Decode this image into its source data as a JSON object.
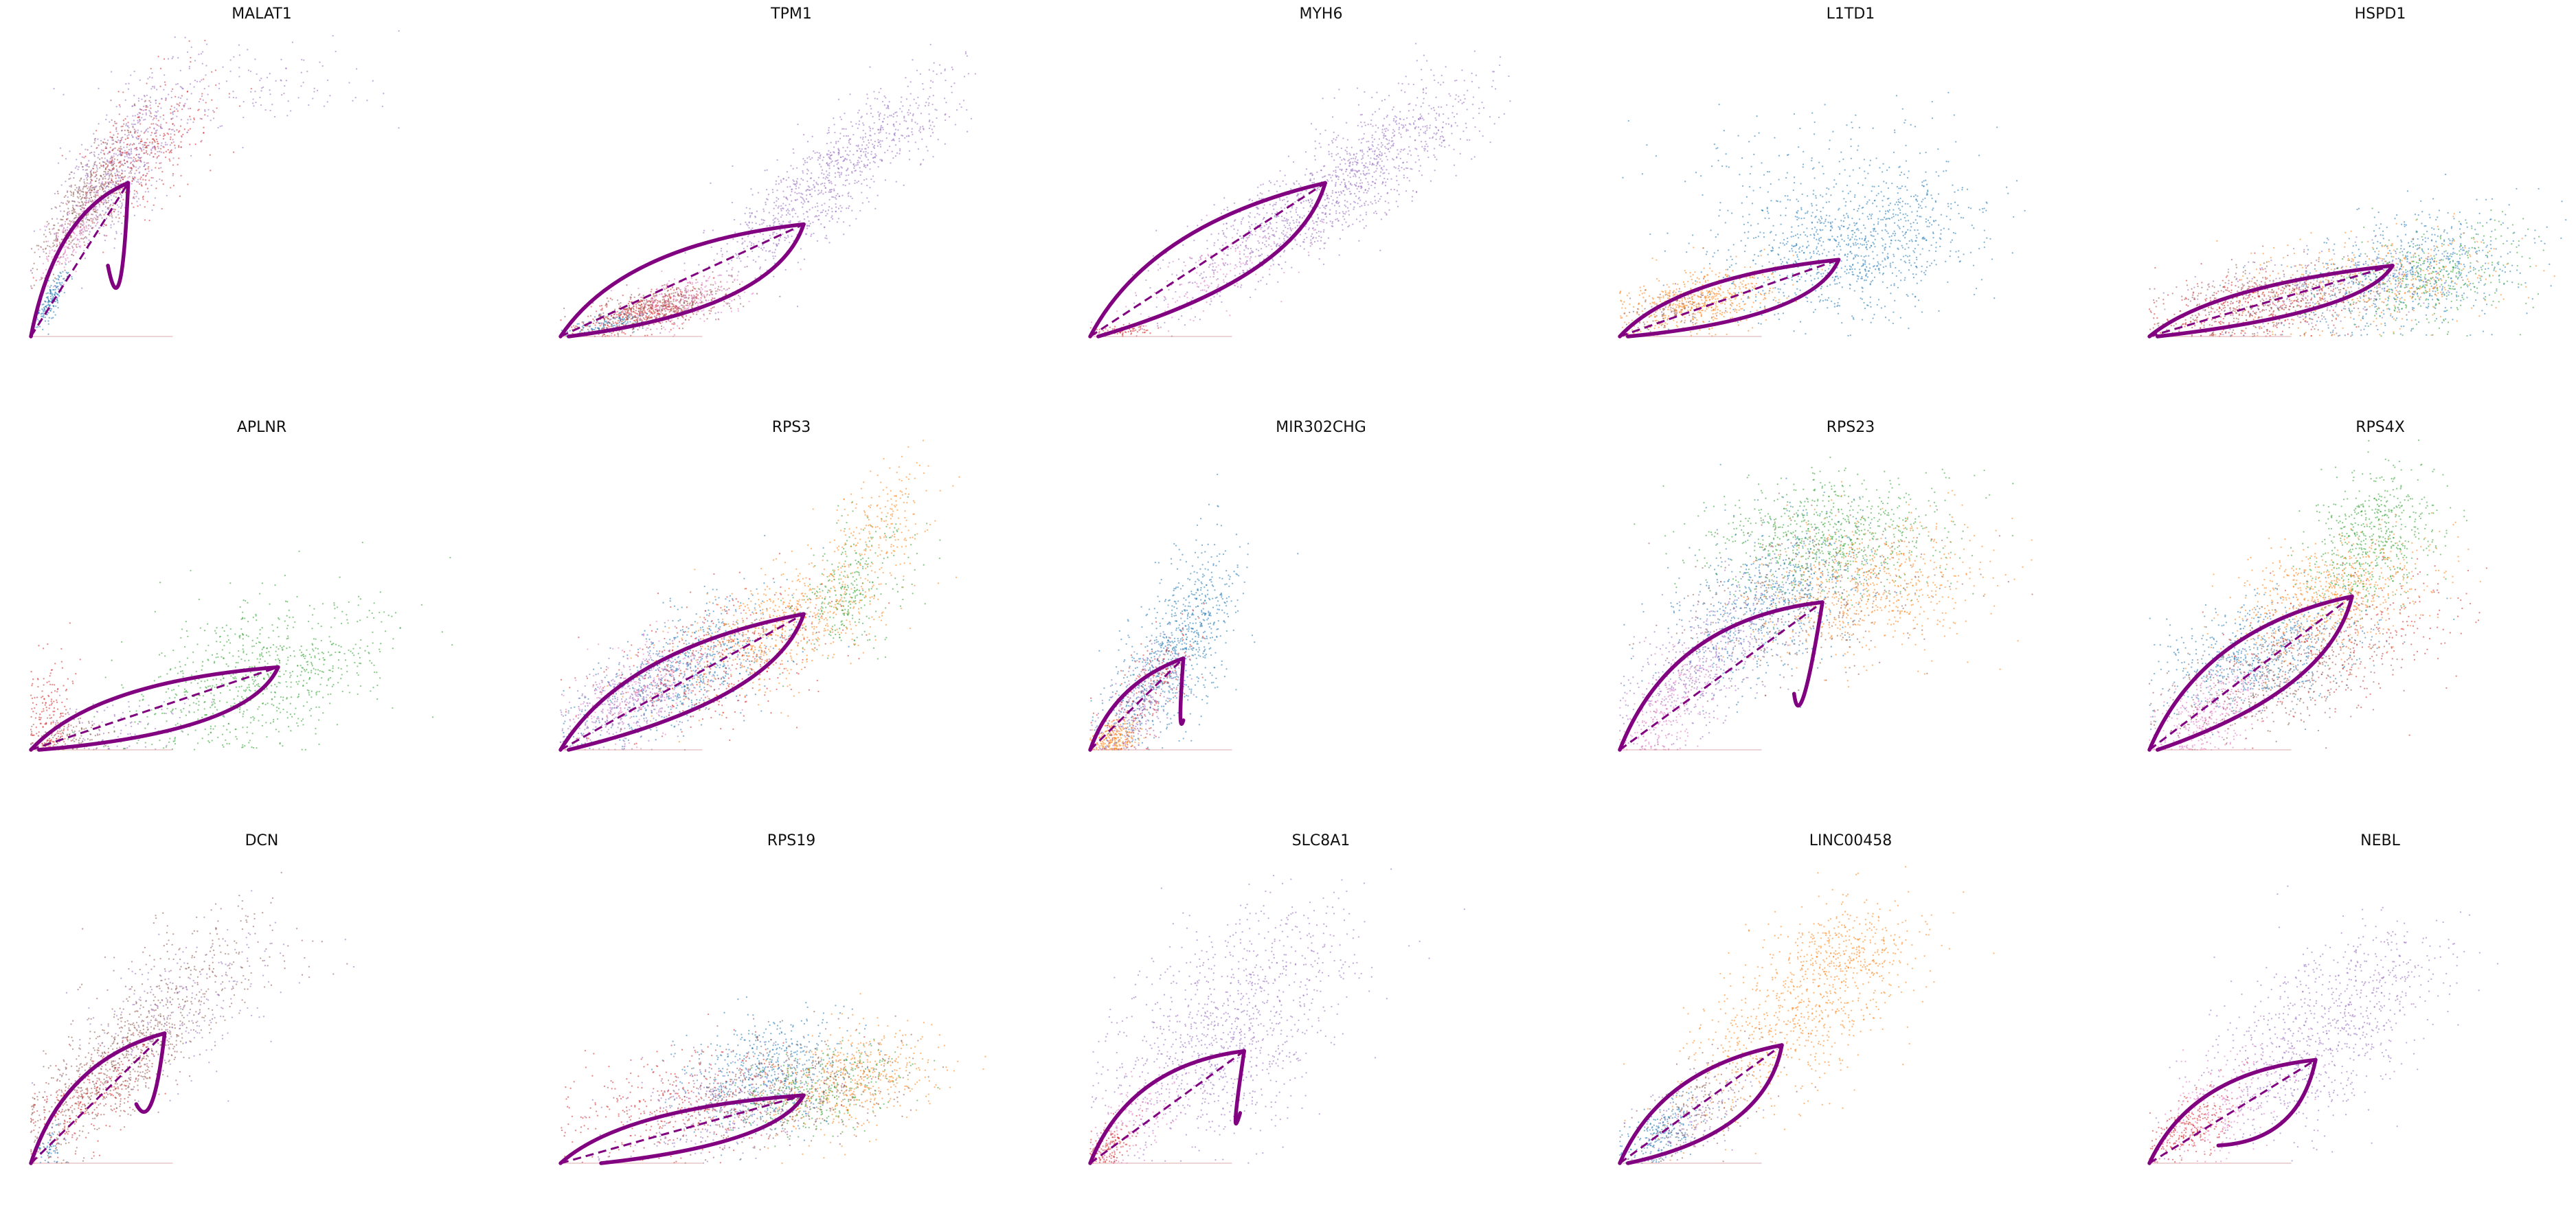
{
  "figure": {
    "palette": {
      "c0": "#1f77b4",
      "c1": "#ff7f0e",
      "c2": "#2ca02c",
      "c3": "#d62728",
      "c4": "#9467bd",
      "c5": "#8c564b",
      "c6": "#e377c2",
      "fit": "#800080"
    }
  },
  "chart_data": [
    {
      "type": "scatter",
      "title": "MALAT1",
      "xlabel": "",
      "ylabel": "",
      "grid": false,
      "axes": "hidden",
      "clusters": [
        {
          "color": "c4",
          "cx": 0.22,
          "cy": 0.58,
          "sx": 0.08,
          "sy": 0.14,
          "corr": 0.7,
          "n": 650
        },
        {
          "color": "c5",
          "cx": 0.14,
          "cy": 0.46,
          "sx": 0.06,
          "sy": 0.12,
          "corr": 0.8,
          "n": 520
        },
        {
          "color": "c3",
          "cx": 0.28,
          "cy": 0.62,
          "sx": 0.08,
          "sy": 0.13,
          "corr": 0.6,
          "n": 350
        },
        {
          "color": "c6",
          "cx": 0.1,
          "cy": 0.34,
          "sx": 0.04,
          "sy": 0.08,
          "corr": 0.8,
          "n": 200
        },
        {
          "color": "c0",
          "cx": 0.05,
          "cy": 0.12,
          "sx": 0.02,
          "sy": 0.05,
          "corr": 0.8,
          "n": 180
        },
        {
          "color": "c4",
          "cx": 0.48,
          "cy": 0.82,
          "sx": 0.18,
          "sy": 0.08,
          "corr": 0.2,
          "n": 150
        }
      ],
      "fit": {
        "on_x": 0.24,
        "on_y": 0.52,
        "off_end_x": 0.19,
        "off_end_y": 0.24,
        "up_bulge": 0.16,
        "down_sag": 0.26,
        "ss_x": 0.24,
        "ss_y": 0.52
      }
    },
    {
      "type": "scatter",
      "title": "TPM1",
      "xlabel": "",
      "ylabel": "",
      "grid": false,
      "axes": "hidden",
      "clusters": [
        {
          "color": "c4",
          "cx": 0.62,
          "cy": 0.48,
          "sx": 0.12,
          "sy": 0.14,
          "corr": 0.8,
          "n": 700
        },
        {
          "color": "c3",
          "cx": 0.2,
          "cy": 0.08,
          "sx": 0.08,
          "sy": 0.04,
          "corr": 0.6,
          "n": 450
        },
        {
          "color": "c5",
          "cx": 0.25,
          "cy": 0.1,
          "sx": 0.09,
          "sy": 0.04,
          "corr": 0.6,
          "n": 400
        },
        {
          "color": "c6",
          "cx": 0.3,
          "cy": 0.12,
          "sx": 0.08,
          "sy": 0.05,
          "corr": 0.5,
          "n": 250
        },
        {
          "color": "c0",
          "cx": 0.12,
          "cy": 0.04,
          "sx": 0.05,
          "sy": 0.02,
          "corr": 0.5,
          "n": 120
        },
        {
          "color": "c4",
          "cx": 0.82,
          "cy": 0.72,
          "sx": 0.1,
          "sy": 0.1,
          "corr": 0.6,
          "n": 250
        }
      ],
      "fit": {
        "on_x": 0.6,
        "on_y": 0.38,
        "off_end_x": 0.02,
        "off_end_y": 0.0,
        "up_bulge": 0.12,
        "down_sag": 0.1,
        "ss_x": 0.6,
        "ss_y": 0.38
      }
    },
    {
      "type": "scatter",
      "title": "MYH6",
      "xlabel": "",
      "ylabel": "",
      "grid": false,
      "axes": "hidden",
      "clusters": [
        {
          "color": "c4",
          "cx": 0.55,
          "cy": 0.45,
          "sx": 0.18,
          "sy": 0.16,
          "corr": 0.85,
          "n": 1100
        },
        {
          "color": "c4",
          "cx": 0.78,
          "cy": 0.72,
          "sx": 0.1,
          "sy": 0.1,
          "corr": 0.5,
          "n": 250
        },
        {
          "color": "c6",
          "cx": 0.3,
          "cy": 0.2,
          "sx": 0.1,
          "sy": 0.08,
          "corr": 0.7,
          "n": 150
        },
        {
          "color": "c3",
          "cx": 0.08,
          "cy": 0.02,
          "sx": 0.04,
          "sy": 0.01,
          "corr": 0.2,
          "n": 80
        }
      ],
      "fit": {
        "on_x": 0.58,
        "on_y": 0.52,
        "off_end_x": 0.02,
        "off_end_y": 0.0,
        "up_bulge": 0.12,
        "down_sag": 0.06,
        "ss_x": 0.58,
        "ss_y": 0.52
      }
    },
    {
      "type": "scatter",
      "title": "L1TD1",
      "xlabel": "",
      "ylabel": "",
      "grid": false,
      "axes": "hidden",
      "clusters": [
        {
          "color": "c0",
          "cx": 0.58,
          "cy": 0.3,
          "sx": 0.16,
          "sy": 0.12,
          "corr": 0.3,
          "n": 1000
        },
        {
          "color": "c1",
          "cx": 0.2,
          "cy": 0.12,
          "sx": 0.1,
          "sy": 0.06,
          "corr": 0.4,
          "n": 600
        },
        {
          "color": "c0",
          "cx": 0.5,
          "cy": 0.55,
          "sx": 0.2,
          "sy": 0.12,
          "corr": 0.2,
          "n": 200
        },
        {
          "color": "c5",
          "cx": 0.12,
          "cy": 0.08,
          "sx": 0.06,
          "sy": 0.04,
          "corr": 0.4,
          "n": 120
        }
      ],
      "fit": {
        "on_x": 0.54,
        "on_y": 0.26,
        "off_end_x": 0.02,
        "off_end_y": 0.0,
        "up_bulge": 0.07,
        "down_sag": 0.07,
        "ss_x": 0.54,
        "ss_y": 0.26
      }
    },
    {
      "type": "scatter",
      "title": "HSPD1",
      "xlabel": "",
      "ylabel": "",
      "grid": false,
      "axes": "hidden",
      "clusters": [
        {
          "color": "c0",
          "cx": 0.65,
          "cy": 0.22,
          "sx": 0.14,
          "sy": 0.1,
          "corr": 0.3,
          "n": 700
        },
        {
          "color": "c2",
          "cx": 0.7,
          "cy": 0.2,
          "sx": 0.12,
          "sy": 0.09,
          "corr": 0.3,
          "n": 350
        },
        {
          "color": "c1",
          "cx": 0.55,
          "cy": 0.18,
          "sx": 0.16,
          "sy": 0.08,
          "corr": 0.3,
          "n": 400
        },
        {
          "color": "c3",
          "cx": 0.25,
          "cy": 0.1,
          "sx": 0.12,
          "sy": 0.06,
          "corr": 0.3,
          "n": 400
        },
        {
          "color": "c5",
          "cx": 0.3,
          "cy": 0.12,
          "sx": 0.14,
          "sy": 0.07,
          "corr": 0.3,
          "n": 400
        },
        {
          "color": "c4",
          "cx": 0.42,
          "cy": 0.16,
          "sx": 0.14,
          "sy": 0.07,
          "corr": 0.3,
          "n": 250
        }
      ],
      "fit": {
        "on_x": 0.6,
        "on_y": 0.24,
        "off_end_x": 0.02,
        "off_end_y": 0.0,
        "up_bulge": 0.05,
        "down_sag": 0.04,
        "ss_x": 0.6,
        "ss_y": 0.24
      }
    },
    {
      "type": "scatter",
      "title": "APLNR",
      "xlabel": "",
      "ylabel": "",
      "grid": false,
      "axes": "hidden",
      "clusters": [
        {
          "color": "c2",
          "cx": 0.56,
          "cy": 0.24,
          "sx": 0.16,
          "sy": 0.13,
          "corr": 0.4,
          "n": 800
        },
        {
          "color": "c3",
          "cx": 0.05,
          "cy": 0.1,
          "sx": 0.03,
          "sy": 0.1,
          "corr": 0.1,
          "n": 200
        },
        {
          "color": "c5",
          "cx": 0.1,
          "cy": 0.05,
          "sx": 0.05,
          "sy": 0.04,
          "corr": 0.2,
          "n": 120
        },
        {
          "color": "c4",
          "cx": 0.2,
          "cy": 0.08,
          "sx": 0.1,
          "sy": 0.06,
          "corr": 0.3,
          "n": 100
        }
      ],
      "fit": {
        "on_x": 0.61,
        "on_y": 0.28,
        "off_end_x": 0.02,
        "off_end_y": 0.0,
        "up_bulge": 0.09,
        "down_sag": 0.08,
        "ss_x": 0.61,
        "ss_y": 0.28
      }
    },
    {
      "type": "scatter",
      "title": "RPS3",
      "xlabel": "",
      "ylabel": "",
      "grid": false,
      "axes": "hidden",
      "clusters": [
        {
          "color": "c0",
          "cx": 0.32,
          "cy": 0.28,
          "sx": 0.12,
          "sy": 0.12,
          "corr": 0.6,
          "n": 700
        },
        {
          "color": "c1",
          "cx": 0.55,
          "cy": 0.42,
          "sx": 0.14,
          "sy": 0.12,
          "corr": 0.6,
          "n": 700
        },
        {
          "color": "c2",
          "cx": 0.72,
          "cy": 0.55,
          "sx": 0.07,
          "sy": 0.12,
          "corr": 0.4,
          "n": 300
        },
        {
          "color": "c1",
          "cx": 0.8,
          "cy": 0.78,
          "sx": 0.06,
          "sy": 0.1,
          "corr": 0.4,
          "n": 200
        },
        {
          "color": "c4",
          "cx": 0.16,
          "cy": 0.16,
          "sx": 0.09,
          "sy": 0.1,
          "corr": 0.6,
          "n": 450
        },
        {
          "color": "c6",
          "cx": 0.2,
          "cy": 0.2,
          "sx": 0.1,
          "sy": 0.1,
          "corr": 0.6,
          "n": 300
        },
        {
          "color": "c3",
          "cx": 0.38,
          "cy": 0.3,
          "sx": 0.14,
          "sy": 0.12,
          "corr": 0.5,
          "n": 400
        }
      ],
      "fit": {
        "on_x": 0.6,
        "on_y": 0.46,
        "off_end_x": 0.02,
        "off_end_y": 0.0,
        "up_bulge": 0.11,
        "down_sag": 0.06,
        "ss_x": 0.6,
        "ss_y": 0.46
      }
    },
    {
      "type": "scatter",
      "title": "MIR302CHG",
      "xlabel": "",
      "ylabel": "",
      "grid": false,
      "axes": "hidden",
      "clusters": [
        {
          "color": "c0",
          "cx": 0.24,
          "cy": 0.38,
          "sx": 0.06,
          "sy": 0.15,
          "corr": 0.5,
          "n": 650
        },
        {
          "color": "c1",
          "cx": 0.06,
          "cy": 0.04,
          "sx": 0.03,
          "sy": 0.03,
          "corr": 0.3,
          "n": 250
        },
        {
          "color": "c4",
          "cx": 0.12,
          "cy": 0.15,
          "sx": 0.05,
          "sy": 0.09,
          "corr": 0.6,
          "n": 300
        },
        {
          "color": "c3",
          "cx": 0.14,
          "cy": 0.2,
          "sx": 0.06,
          "sy": 0.1,
          "corr": 0.6,
          "n": 200
        },
        {
          "color": "c0",
          "cx": 0.12,
          "cy": 0.22,
          "sx": 0.05,
          "sy": 0.1,
          "corr": 0.5,
          "n": 200
        }
      ],
      "fit": {
        "on_x": 0.23,
        "on_y": 0.31,
        "off_end_x": 0.23,
        "off_end_y": 0.1,
        "up_bulge": 0.07,
        "down_sag": 0.12,
        "ss_x": 0.23,
        "ss_y": 0.31
      }
    },
    {
      "type": "scatter",
      "title": "RPS23",
      "xlabel": "",
      "ylabel": "",
      "grid": false,
      "axes": "hidden",
      "clusters": [
        {
          "color": "c2",
          "cx": 0.52,
          "cy": 0.72,
          "sx": 0.14,
          "sy": 0.1,
          "corr": 0.1,
          "n": 800
        },
        {
          "color": "c1",
          "cx": 0.62,
          "cy": 0.55,
          "sx": 0.14,
          "sy": 0.12,
          "corr": 0.2,
          "n": 700
        },
        {
          "color": "c0",
          "cx": 0.36,
          "cy": 0.5,
          "sx": 0.12,
          "sy": 0.14,
          "corr": 0.4,
          "n": 700
        },
        {
          "color": "c4",
          "cx": 0.2,
          "cy": 0.28,
          "sx": 0.1,
          "sy": 0.14,
          "corr": 0.6,
          "n": 500
        },
        {
          "color": "c5",
          "cx": 0.45,
          "cy": 0.5,
          "sx": 0.16,
          "sy": 0.14,
          "corr": 0.3,
          "n": 400
        },
        {
          "color": "c6",
          "cx": 0.12,
          "cy": 0.14,
          "sx": 0.06,
          "sy": 0.1,
          "corr": 0.5,
          "n": 250
        }
      ],
      "fit": {
        "on_x": 0.5,
        "on_y": 0.5,
        "off_end_x": 0.43,
        "off_end_y": 0.19,
        "up_bulge": 0.19,
        "down_sag": 0.22,
        "ss_x": 0.5,
        "ss_y": 0.5
      }
    },
    {
      "type": "scatter",
      "title": "RPS4X",
      "xlabel": "",
      "ylabel": "",
      "grid": false,
      "axes": "hidden",
      "clusters": [
        {
          "color": "c2",
          "cx": 0.55,
          "cy": 0.72,
          "sx": 0.08,
          "sy": 0.12,
          "corr": 0.3,
          "n": 600
        },
        {
          "color": "c1",
          "cx": 0.45,
          "cy": 0.52,
          "sx": 0.12,
          "sy": 0.1,
          "corr": 0.4,
          "n": 700
        },
        {
          "color": "c0",
          "cx": 0.28,
          "cy": 0.32,
          "sx": 0.12,
          "sy": 0.1,
          "corr": 0.4,
          "n": 700
        },
        {
          "color": "c6",
          "cx": 0.15,
          "cy": 0.12,
          "sx": 0.07,
          "sy": 0.08,
          "corr": 0.5,
          "n": 400
        },
        {
          "color": "c5",
          "cx": 0.32,
          "cy": 0.25,
          "sx": 0.14,
          "sy": 0.1,
          "corr": 0.5,
          "n": 500
        },
        {
          "color": "c3",
          "cx": 0.5,
          "cy": 0.38,
          "sx": 0.14,
          "sy": 0.12,
          "corr": 0.4,
          "n": 300
        }
      ],
      "fit": {
        "on_x": 0.5,
        "on_y": 0.52,
        "off_end_x": 0.02,
        "off_end_y": 0.0,
        "up_bulge": 0.15,
        "down_sag": 0.06,
        "ss_x": 0.5,
        "ss_y": 0.52
      }
    },
    {
      "type": "scatter",
      "title": "DCN",
      "xlabel": "",
      "ylabel": "",
      "grid": false,
      "axes": "hidden",
      "clusters": [
        {
          "color": "c5",
          "cx": 0.22,
          "cy": 0.35,
          "sx": 0.12,
          "sy": 0.15,
          "corr": 0.8,
          "n": 900
        },
        {
          "color": "c3",
          "cx": 0.15,
          "cy": 0.22,
          "sx": 0.08,
          "sy": 0.1,
          "corr": 0.7,
          "n": 250
        },
        {
          "color": "c4",
          "cx": 0.38,
          "cy": 0.52,
          "sx": 0.12,
          "sy": 0.12,
          "corr": 0.5,
          "n": 250
        },
        {
          "color": "c5",
          "cx": 0.45,
          "cy": 0.7,
          "sx": 0.14,
          "sy": 0.1,
          "corr": 0.3,
          "n": 150
        },
        {
          "color": "c0",
          "cx": 0.05,
          "cy": 0.06,
          "sx": 0.02,
          "sy": 0.04,
          "corr": 0.5,
          "n": 60
        }
      ],
      "fit": {
        "on_x": 0.33,
        "on_y": 0.44,
        "off_end_x": 0.26,
        "off_end_y": 0.2,
        "up_bulge": 0.13,
        "down_sag": 0.13,
        "ss_x": 0.33,
        "ss_y": 0.44
      }
    },
    {
      "type": "scatter",
      "title": "RPS19",
      "xlabel": "",
      "ylabel": "",
      "grid": false,
      "axes": "hidden",
      "clusters": [
        {
          "color": "c0",
          "cx": 0.5,
          "cy": 0.3,
          "sx": 0.1,
          "sy": 0.1,
          "corr": 0.3,
          "n": 600
        },
        {
          "color": "c1",
          "cx": 0.72,
          "cy": 0.28,
          "sx": 0.1,
          "sy": 0.09,
          "corr": 0.3,
          "n": 500
        },
        {
          "color": "c2",
          "cx": 0.65,
          "cy": 0.25,
          "sx": 0.1,
          "sy": 0.08,
          "corr": 0.3,
          "n": 300
        },
        {
          "color": "c5",
          "cx": 0.55,
          "cy": 0.25,
          "sx": 0.15,
          "sy": 0.1,
          "corr": 0.3,
          "n": 500
        },
        {
          "color": "c3",
          "cx": 0.3,
          "cy": 0.2,
          "sx": 0.14,
          "sy": 0.1,
          "corr": 0.3,
          "n": 400
        },
        {
          "color": "c4",
          "cx": 0.38,
          "cy": 0.18,
          "sx": 0.12,
          "sy": 0.08,
          "corr": 0.3,
          "n": 300
        }
      ],
      "fit": {
        "on_x": 0.6,
        "on_y": 0.23,
        "off_end_x": 0.1,
        "off_end_y": 0.0,
        "up_bulge": 0.07,
        "down_sag": 0.05,
        "ss_x": 0.6,
        "ss_y": 0.23
      }
    },
    {
      "type": "scatter",
      "title": "SLC8A1",
      "xlabel": "",
      "ylabel": "",
      "grid": false,
      "axes": "hidden",
      "clusters": [
        {
          "color": "c4",
          "cx": 0.32,
          "cy": 0.4,
          "sx": 0.14,
          "sy": 0.18,
          "corr": 0.4,
          "n": 900
        },
        {
          "color": "c4",
          "cx": 0.45,
          "cy": 0.72,
          "sx": 0.15,
          "sy": 0.12,
          "corr": 0.2,
          "n": 200
        },
        {
          "color": "c3",
          "cx": 0.05,
          "cy": 0.06,
          "sx": 0.03,
          "sy": 0.04,
          "corr": 0.4,
          "n": 150
        },
        {
          "color": "c6",
          "cx": 0.12,
          "cy": 0.16,
          "sx": 0.06,
          "sy": 0.08,
          "corr": 0.5,
          "n": 150
        }
      ],
      "fit": {
        "on_x": 0.38,
        "on_y": 0.38,
        "off_end_x": 0.37,
        "off_end_y": 0.17,
        "up_bulge": 0.14,
        "down_sag": 0.15,
        "ss_x": 0.38,
        "ss_y": 0.38
      }
    },
    {
      "type": "scatter",
      "title": "LINC00458",
      "xlabel": "",
      "ylabel": "",
      "grid": false,
      "axes": "hidden",
      "clusters": [
        {
          "color": "c1",
          "cx": 0.45,
          "cy": 0.52,
          "sx": 0.14,
          "sy": 0.18,
          "corr": 0.6,
          "n": 800
        },
        {
          "color": "c1",
          "cx": 0.55,
          "cy": 0.72,
          "sx": 0.08,
          "sy": 0.08,
          "corr": 0.3,
          "n": 200
        },
        {
          "color": "c0",
          "cx": 0.1,
          "cy": 0.1,
          "sx": 0.05,
          "sy": 0.06,
          "corr": 0.6,
          "n": 250
        },
        {
          "color": "c5",
          "cx": 0.2,
          "cy": 0.2,
          "sx": 0.09,
          "sy": 0.1,
          "corr": 0.6,
          "n": 200
        },
        {
          "color": "c4",
          "cx": 0.18,
          "cy": 0.15,
          "sx": 0.07,
          "sy": 0.08,
          "corr": 0.5,
          "n": 150
        }
      ],
      "fit": {
        "on_x": 0.4,
        "on_y": 0.4,
        "off_end_x": 0.02,
        "off_end_y": 0.0,
        "up_bulge": 0.12,
        "down_sag": 0.1,
        "ss_x": 0.4,
        "ss_y": 0.4
      }
    },
    {
      "type": "scatter",
      "title": "NEBL",
      "xlabel": "",
      "ylabel": "",
      "grid": false,
      "axes": "hidden",
      "clusters": [
        {
          "color": "c4",
          "cx": 0.4,
          "cy": 0.4,
          "sx": 0.14,
          "sy": 0.16,
          "corr": 0.5,
          "n": 800
        },
        {
          "color": "c3",
          "cx": 0.1,
          "cy": 0.12,
          "sx": 0.05,
          "sy": 0.06,
          "corr": 0.5,
          "n": 250
        },
        {
          "color": "c6",
          "cx": 0.18,
          "cy": 0.2,
          "sx": 0.08,
          "sy": 0.1,
          "corr": 0.5,
          "n": 250
        },
        {
          "color": "c4",
          "cx": 0.55,
          "cy": 0.65,
          "sx": 0.12,
          "sy": 0.1,
          "corr": 0.3,
          "n": 150
        }
      ],
      "fit": {
        "on_x": 0.41,
        "on_y": 0.35,
        "off_end_x": 0.17,
        "off_end_y": 0.06,
        "up_bulge": 0.13,
        "down_sag": 0.1,
        "ss_x": 0.41,
        "ss_y": 0.35
      }
    }
  ]
}
